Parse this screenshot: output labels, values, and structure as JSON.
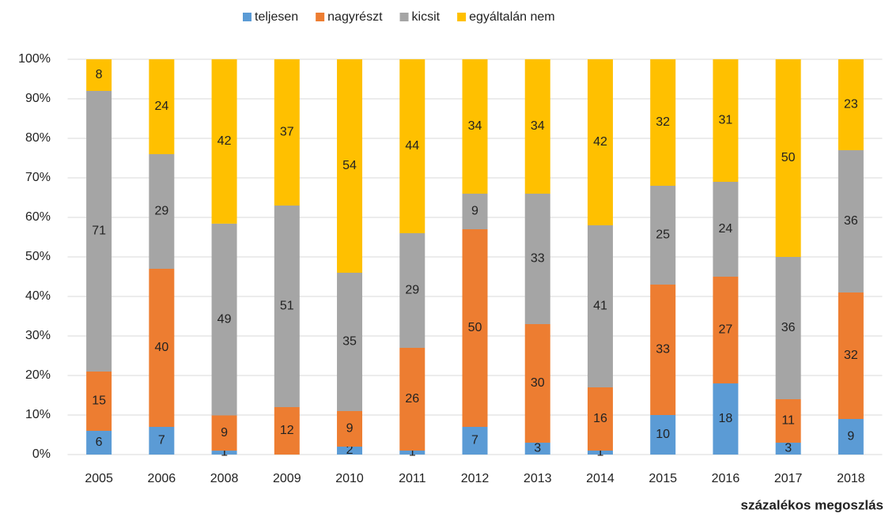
{
  "chart_data": {
    "type": "bar",
    "stacked": "percent",
    "categories": [
      "2005",
      "2006",
      "2008",
      "2009",
      "2010",
      "2011",
      "2012",
      "2013",
      "2014",
      "2015",
      "2016",
      "2017",
      "2018"
    ],
    "series": [
      {
        "name": "teljesen",
        "color": "#5b9bd5",
        "values": [
          6,
          7,
          1,
          null,
          2,
          1,
          7,
          3,
          1,
          10,
          18,
          3,
          9
        ]
      },
      {
        "name": "nagyrészt",
        "color": "#ed7d31",
        "values": [
          15,
          40,
          9,
          12,
          9,
          26,
          50,
          30,
          16,
          33,
          27,
          11,
          32
        ]
      },
      {
        "name": "kicsit",
        "color": "#a5a5a5",
        "values": [
          71,
          29,
          49,
          51,
          35,
          29,
          9,
          33,
          41,
          25,
          24,
          36,
          36
        ]
      },
      {
        "name": "egyáltalán nem",
        "color": "#ffc000",
        "values": [
          8,
          24,
          42,
          37,
          54,
          44,
          34,
          34,
          42,
          32,
          31,
          50,
          23
        ]
      }
    ],
    "ylim": [
      0,
      100
    ],
    "yticks": [
      {
        "value": 0,
        "label": "0%"
      },
      {
        "value": 10,
        "label": "10%"
      },
      {
        "value": 20,
        "label": "20%"
      },
      {
        "value": 30,
        "label": "30%"
      },
      {
        "value": 40,
        "label": "40%"
      },
      {
        "value": 50,
        "label": "50%"
      },
      {
        "value": 60,
        "label": "60%"
      },
      {
        "value": 70,
        "label": "70%"
      },
      {
        "value": 80,
        "label": "80%"
      },
      {
        "value": 90,
        "label": "90%"
      },
      {
        "value": 100,
        "label": "100%"
      }
    ],
    "grid": true,
    "legend": "top",
    "footnote": "százalékos megoszlás"
  }
}
